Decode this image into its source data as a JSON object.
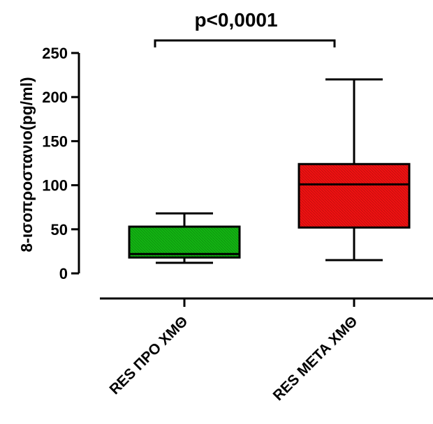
{
  "chart_data": {
    "type": "box",
    "annotation": "p<0,0001",
    "ylabel": "8-ισοπροστανιο(pg/ml)",
    "xlabel": "",
    "ylim": [
      0,
      250
    ],
    "yticks": [
      0,
      50,
      100,
      150,
      200,
      250
    ],
    "ytick_labels": [
      "0",
      "50",
      "100",
      "150",
      "200",
      "250"
    ],
    "grid": false,
    "categories": [
      "RES ΠΡΟ ΧΜΘ",
      "RES ΜΕΤΑ ΧΜΘ"
    ],
    "series": [
      {
        "category": "RES ΠΡΟ ΧΜΘ",
        "whisker_low": 12,
        "q1": 18,
        "median": 22,
        "q3": 53,
        "whisker_high": 68,
        "color": "#12b312"
      },
      {
        "category": "RES ΜΕΤΑ ΧΜΘ",
        "whisker_low": 15,
        "q1": 52,
        "median": 101,
        "q3": 124,
        "whisker_high": 220,
        "color": "#ee1111"
      }
    ]
  }
}
